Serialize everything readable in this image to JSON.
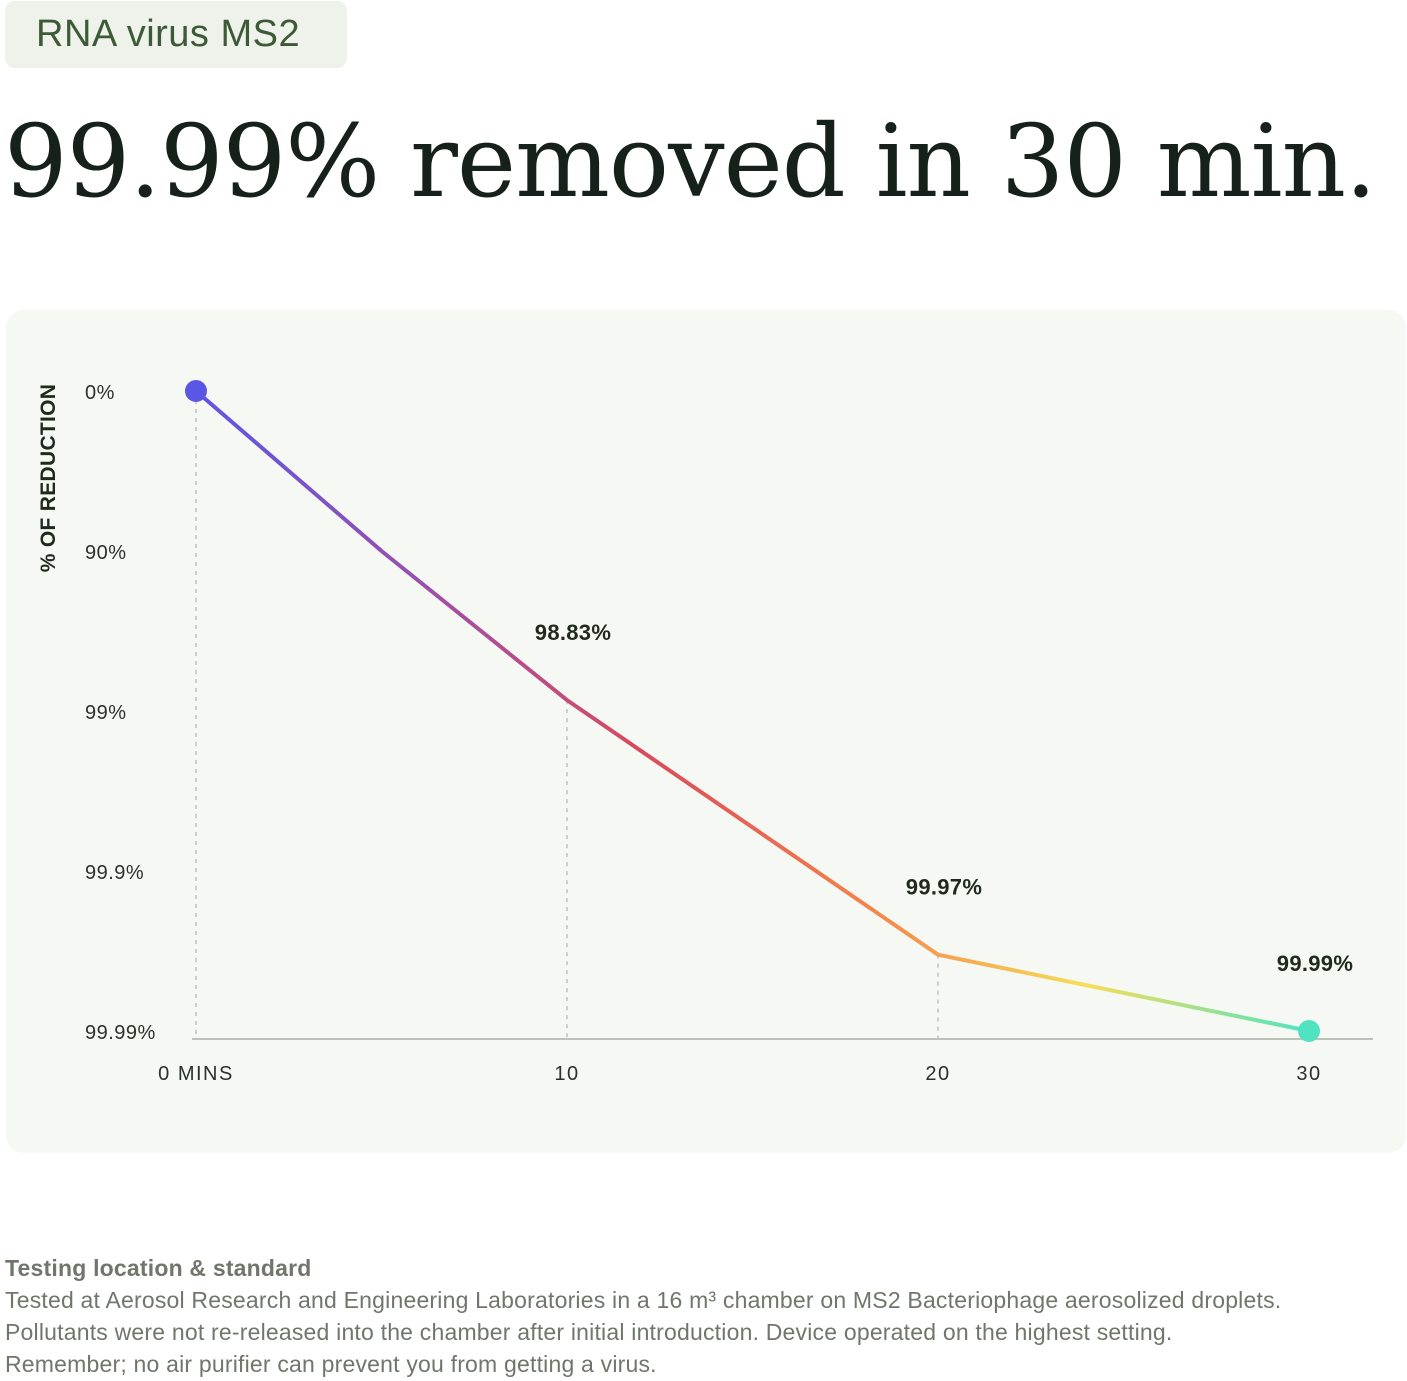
{
  "tag": "RNA virus MS2",
  "headline": "99.99% removed in 30 min.",
  "chart_data": {
    "type": "line",
    "ylabel": "% OF REDUCTION",
    "x_ticks": [
      "0 MINS",
      "10",
      "20",
      "30"
    ],
    "y_ticks": [
      "0%",
      "90%",
      "99%",
      "99.9%",
      "99.99%"
    ],
    "x": [
      0,
      5,
      10,
      20,
      30
    ],
    "y": [
      0,
      90,
      98.83,
      99.97,
      99.99
    ],
    "scale": "log-reduction",
    "labels": [
      {
        "x": 10,
        "text": "98.83%"
      },
      {
        "x": 20,
        "text": "99.97%"
      },
      {
        "x": 30,
        "text": "99.99%"
      }
    ],
    "gradient": [
      "#5b57e6",
      "#9a4fae",
      "#d94a5c",
      "#f4824a",
      "#f7de58",
      "#4fe3c2"
    ],
    "grid": "dashed-verticals"
  },
  "footnote": {
    "title": "Testing location & standard",
    "lines": [
      "Tested at Aerosol Research and Engineering Laboratories in a 16 m³ chamber on MS2 Bacteriophage aerosolized droplets.",
      "Pollutants were not re-released into the chamber after initial introduction. Device operated on the highest setting.",
      "Remember; no air purifier can prevent you from getting a virus."
    ]
  }
}
